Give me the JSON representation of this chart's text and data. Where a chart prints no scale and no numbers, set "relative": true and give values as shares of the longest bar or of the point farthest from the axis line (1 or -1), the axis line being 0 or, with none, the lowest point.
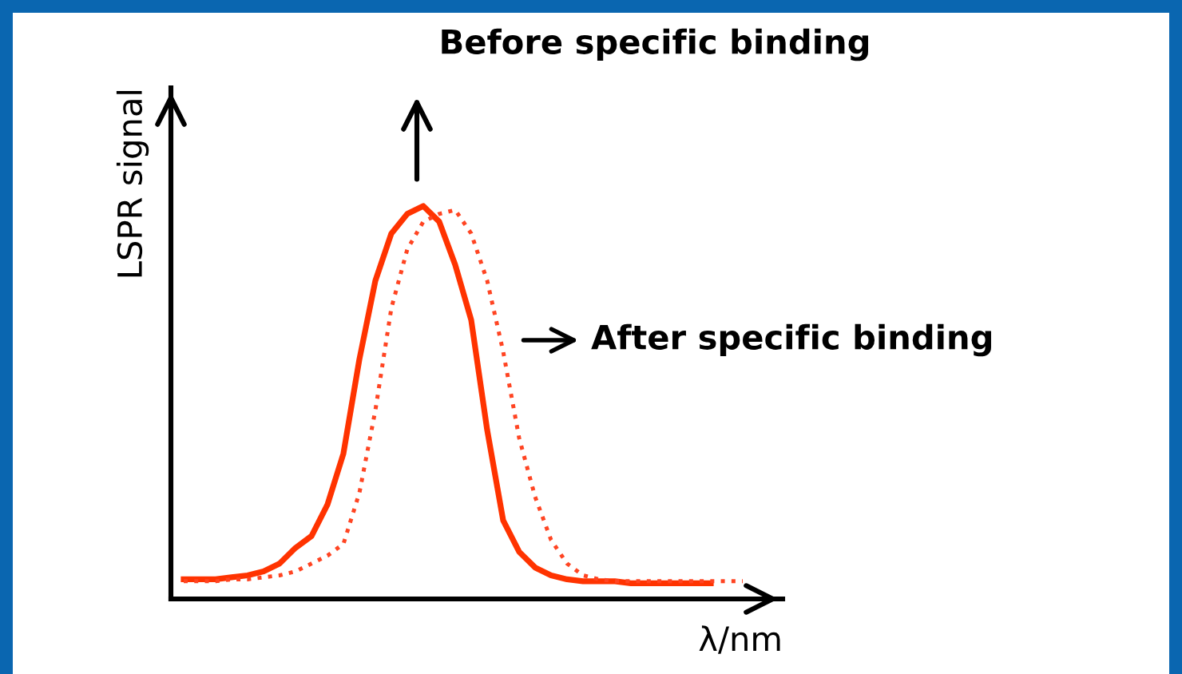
{
  "chart_data": {
    "type": "line",
    "relative": true,
    "xlabel": "λ/nm",
    "ylabel": "LSPR signal",
    "annotations": [
      "Before specific binding",
      "After specific binding"
    ],
    "categories": [
      null,
      null,
      null,
      null,
      null,
      null,
      null,
      null,
      null,
      null,
      null,
      null,
      null,
      null,
      null,
      null,
      null,
      null,
      null,
      null,
      null,
      null,
      null,
      null,
      null,
      null,
      null,
      null,
      null,
      null,
      null,
      null,
      null,
      null,
      null,
      null
    ],
    "legend": false,
    "marker": "none",
    "series": [
      {
        "color": "#ff3300",
        "line_style": "solid",
        "values": [
          0.05,
          0.05,
          0.05,
          0.055,
          0.06,
          0.07,
          0.09,
          0.13,
          0.16,
          0.24,
          0.37,
          0.61,
          0.81,
          0.93,
          0.98,
          1.0,
          0.96,
          0.85,
          0.71,
          0.43,
          0.2,
          0.12,
          0.08,
          0.06,
          0.05,
          0.045,
          0.045,
          0.045,
          0.04,
          0.04,
          0.04,
          0.04,
          0.04,
          0.04,
          null,
          null
        ]
      },
      {
        "color": "#ff4422",
        "line_style": "dotted",
        "values": [
          0.045,
          0.045,
          0.045,
          0.05,
          0.05,
          0.055,
          0.06,
          0.07,
          0.09,
          0.11,
          0.14,
          0.27,
          0.48,
          0.74,
          0.89,
          0.96,
          0.98,
          0.99,
          0.93,
          0.81,
          0.63,
          0.41,
          0.26,
          0.15,
          0.09,
          0.06,
          0.05,
          0.045,
          0.045,
          0.045,
          0.045,
          0.045,
          0.045,
          0.045,
          0.045,
          0.045
        ]
      }
    ]
  }
}
